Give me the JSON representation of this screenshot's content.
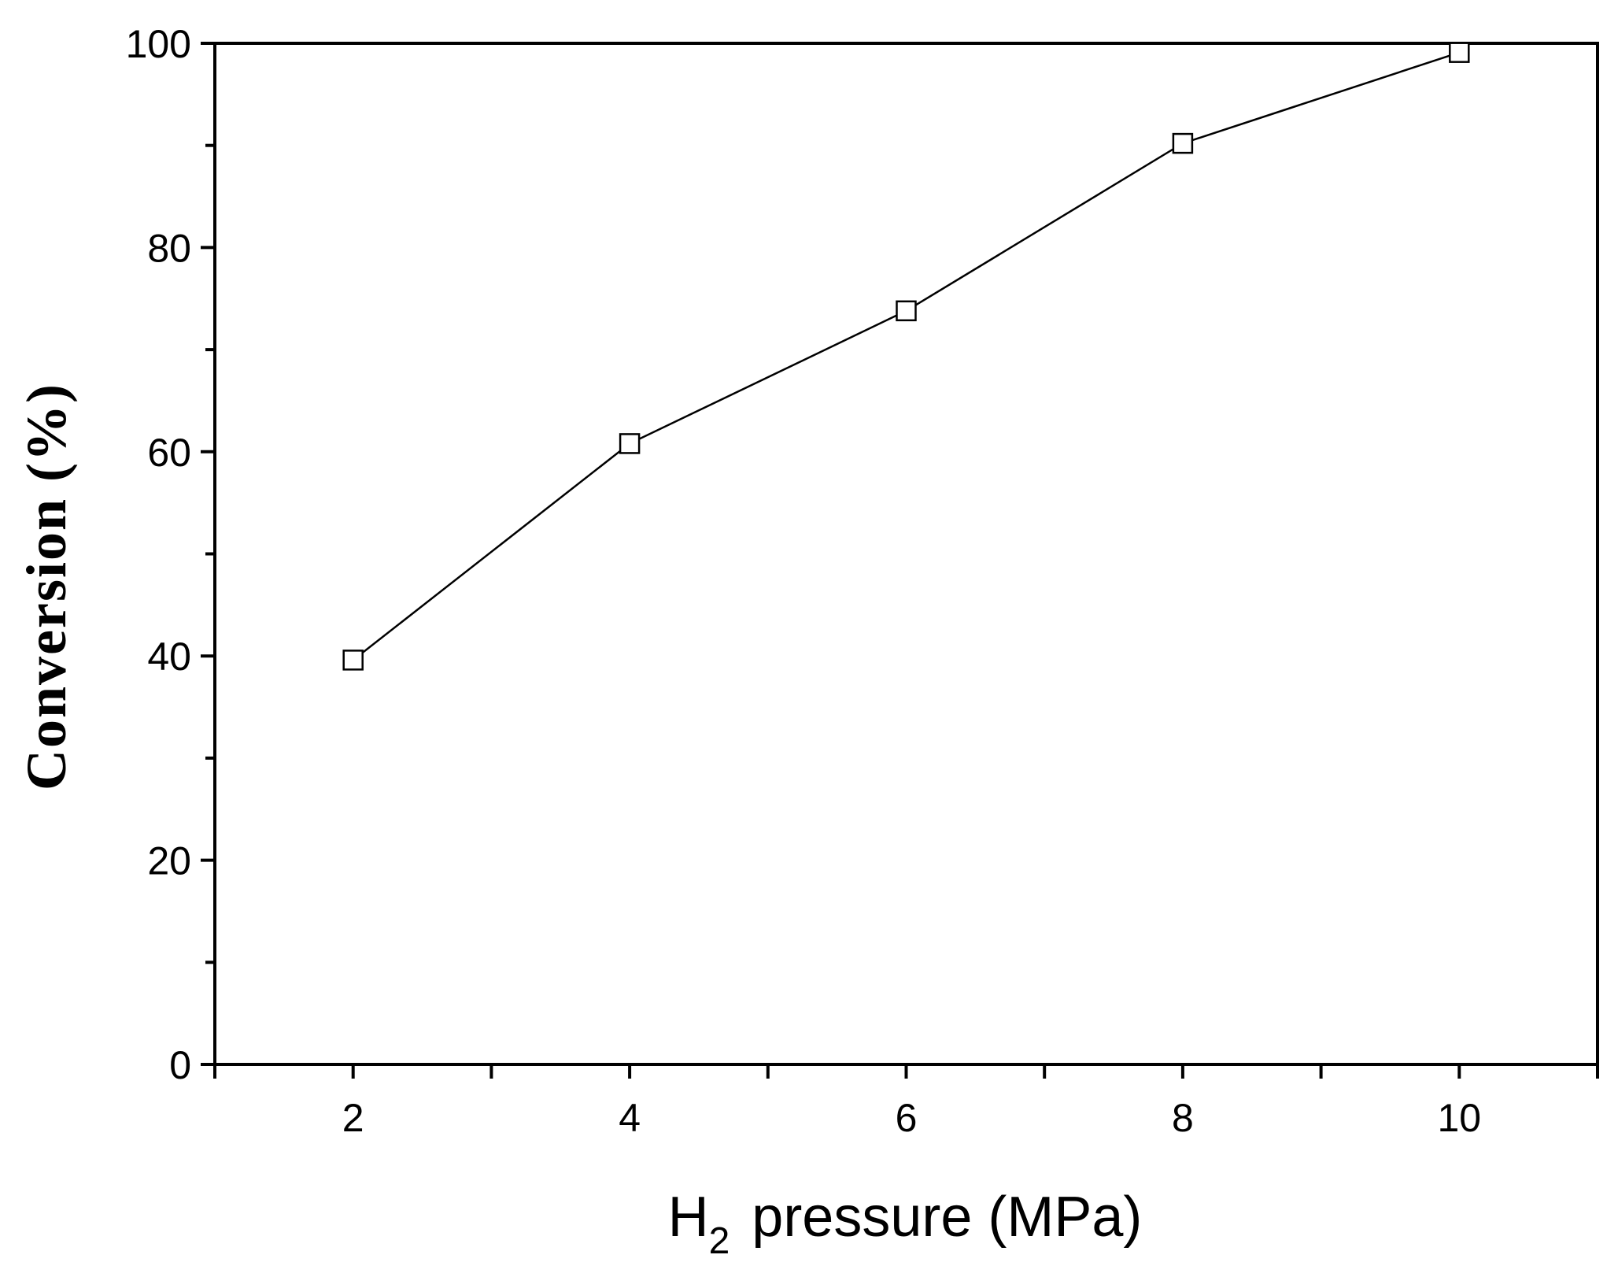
{
  "chart_data": {
    "type": "line",
    "title": "",
    "xlabel": {
      "main": "H",
      "subscript": "2",
      "rest": "pressure (MPa)"
    },
    "ylabel": "Conversion (%)",
    "xlim": [
      1,
      11
    ],
    "ylim": [
      0,
      100
    ],
    "x_major_ticks": [
      2,
      4,
      6,
      8,
      10
    ],
    "x_minor_ticks": [
      1,
      3,
      5,
      7,
      9,
      11
    ],
    "y_major_ticks": [
      0,
      20,
      40,
      60,
      80,
      100
    ],
    "y_minor_ticks": [
      10,
      30,
      50,
      70,
      90
    ],
    "grid": false,
    "legend": "none",
    "series": [
      {
        "marker": "open-square",
        "color": "#000000",
        "x": [
          2,
          4,
          6,
          8,
          10
        ],
        "y": [
          39.6,
          60.8,
          73.8,
          90.2,
          99.1
        ]
      }
    ]
  }
}
